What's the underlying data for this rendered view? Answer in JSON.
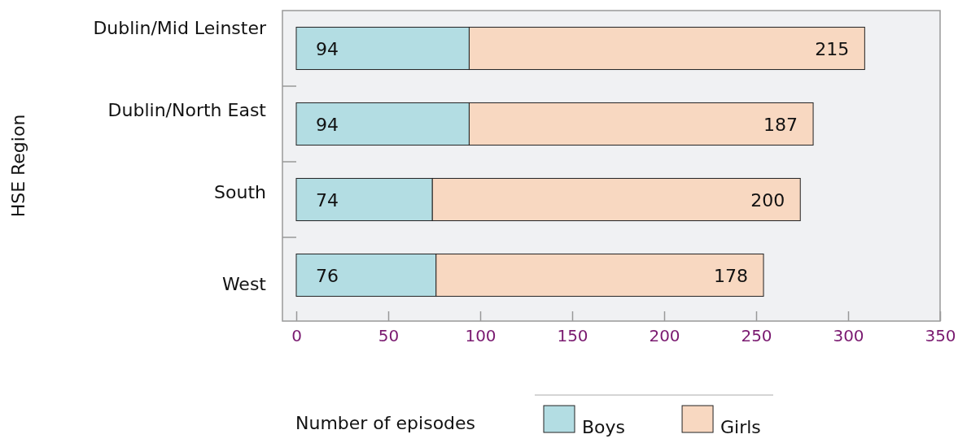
{
  "chart_data": {
    "type": "bar",
    "orientation": "horizontal",
    "stacked": true,
    "ylabel": "HSE Region",
    "xlabel": "Number of episodes",
    "categories": [
      "Dublin/Mid Leinster",
      "Dublin/North East",
      "South",
      "West"
    ],
    "series": [
      {
        "name": "Boys",
        "color": "#b3dde3",
        "values": [
          94,
          94,
          74,
          76
        ]
      },
      {
        "name": "Girls",
        "color": "#f8d8c1",
        "values": [
          215,
          187,
          200,
          178
        ]
      }
    ],
    "xlim": [
      0,
      350
    ],
    "xticks": [
      0,
      50,
      100,
      150,
      200,
      250,
      300,
      350
    ],
    "data_labels": true,
    "legend": "bottom",
    "grid": false
  }
}
